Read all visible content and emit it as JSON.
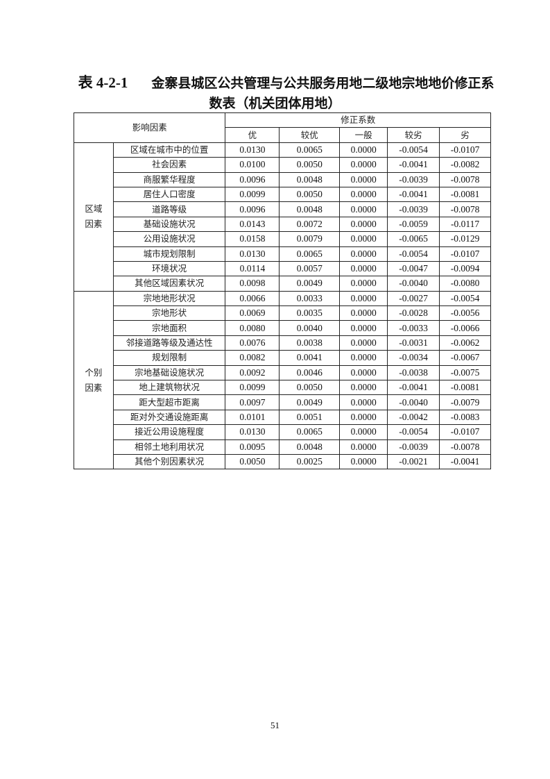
{
  "title": {
    "number": "表 4-2-1",
    "line1": "金寨县城区公共管理与公共服务用地二级地宗地地价修正系",
    "line2": "数表（机关团体用地）"
  },
  "table": {
    "factor_header": "影响因素",
    "coef_header": "修正系数",
    "levels": [
      "优",
      "较优",
      "一般",
      "较劣",
      "劣"
    ],
    "groups": [
      {
        "name": "区域因素",
        "rows": [
          {
            "factor": "区域在城市中的位置",
            "values": [
              "0.0130",
              "0.0065",
              "0.0000",
              "-0.0054",
              "-0.0107"
            ]
          },
          {
            "factor": "社会因素",
            "values": [
              "0.0100",
              "0.0050",
              "0.0000",
              "-0.0041",
              "-0.0082"
            ]
          },
          {
            "factor": "商服繁华程度",
            "values": [
              "0.0096",
              "0.0048",
              "0.0000",
              "-0.0039",
              "-0.0078"
            ]
          },
          {
            "factor": "居住人口密度",
            "values": [
              "0.0099",
              "0.0050",
              "0.0000",
              "-0.0041",
              "-0.0081"
            ]
          },
          {
            "factor": "道路等级",
            "values": [
              "0.0096",
              "0.0048",
              "0.0000",
              "-0.0039",
              "-0.0078"
            ]
          },
          {
            "factor": "基础设施状况",
            "values": [
              "0.0143",
              "0.0072",
              "0.0000",
              "-0.0059",
              "-0.0117"
            ]
          },
          {
            "factor": "公用设施状况",
            "values": [
              "0.0158",
              "0.0079",
              "0.0000",
              "-0.0065",
              "-0.0129"
            ]
          },
          {
            "factor": "城市规划限制",
            "values": [
              "0.0130",
              "0.0065",
              "0.0000",
              "-0.0054",
              "-0.0107"
            ]
          },
          {
            "factor": "环境状况",
            "values": [
              "0.0114",
              "0.0057",
              "0.0000",
              "-0.0047",
              "-0.0094"
            ]
          },
          {
            "factor": "其他区域因素状况",
            "values": [
              "0.0098",
              "0.0049",
              "0.0000",
              "-0.0040",
              "-0.0080"
            ]
          }
        ]
      },
      {
        "name": "个别因素",
        "rows": [
          {
            "factor": "宗地地形状况",
            "values": [
              "0.0066",
              "0.0033",
              "0.0000",
              "-0.0027",
              "-0.0054"
            ]
          },
          {
            "factor": "宗地形状",
            "values": [
              "0.0069",
              "0.0035",
              "0.0000",
              "-0.0028",
              "-0.0056"
            ]
          },
          {
            "factor": "宗地面积",
            "values": [
              "0.0080",
              "0.0040",
              "0.0000",
              "-0.0033",
              "-0.0066"
            ]
          },
          {
            "factor": "邻接道路等级及通达性",
            "values": [
              "0.0076",
              "0.0038",
              "0.0000",
              "-0.0031",
              "-0.0062"
            ]
          },
          {
            "factor": "规划限制",
            "values": [
              "0.0082",
              "0.0041",
              "0.0000",
              "-0.0034",
              "-0.0067"
            ]
          },
          {
            "factor": "宗地基础设施状况",
            "values": [
              "0.0092",
              "0.0046",
              "0.0000",
              "-0.0038",
              "-0.0075"
            ]
          },
          {
            "factor": "地上建筑物状况",
            "values": [
              "0.0099",
              "0.0050",
              "0.0000",
              "-0.0041",
              "-0.0081"
            ]
          },
          {
            "factor": "距大型超市距离",
            "values": [
              "0.0097",
              "0.0049",
              "0.0000",
              "-0.0040",
              "-0.0079"
            ]
          },
          {
            "factor": "距对外交通设施距离",
            "values": [
              "0.0101",
              "0.0051",
              "0.0000",
              "-0.0042",
              "-0.0083"
            ]
          },
          {
            "factor": "接近公用设施程度",
            "values": [
              "0.0130",
              "0.0065",
              "0.0000",
              "-0.0054",
              "-0.0107"
            ]
          },
          {
            "factor": "相邻土地利用状况",
            "values": [
              "0.0095",
              "0.0048",
              "0.0000",
              "-0.0039",
              "-0.0078"
            ]
          },
          {
            "factor": "其他个别因素状况",
            "values": [
              "0.0050",
              "0.0025",
              "0.0000",
              "-0.0021",
              "-0.0041"
            ]
          }
        ]
      }
    ]
  },
  "page_number": "51"
}
